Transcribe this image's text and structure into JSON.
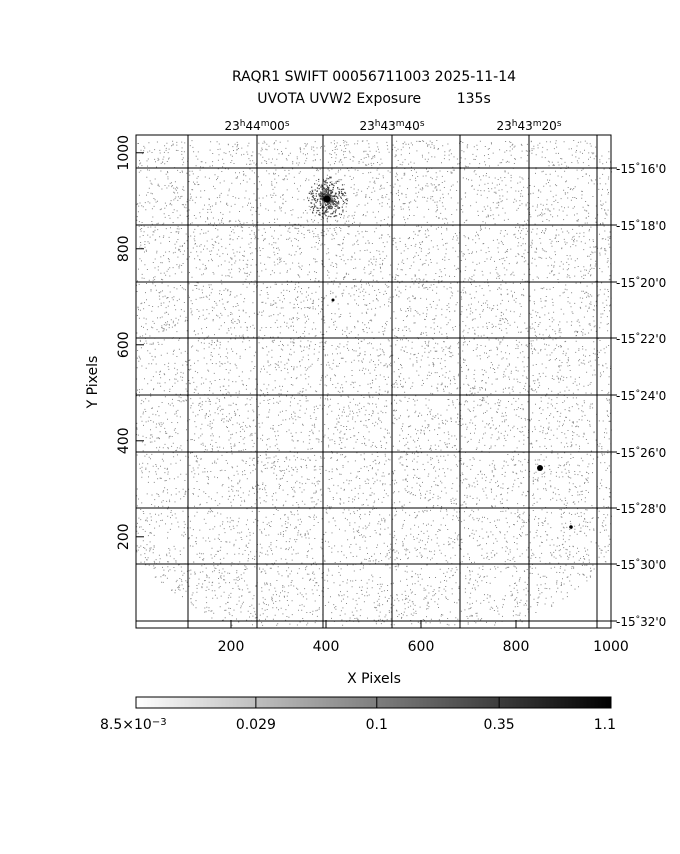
{
  "chart_data": {
    "type": "image",
    "title": "RAQR1 SWIFT 00056711003 2025-11-14",
    "subtitle": "UVOTA UVW2 Exposure        135s",
    "xlabel": "X Pixels",
    "ylabel": "Y Pixels",
    "xlim": [
      0,
      1000
    ],
    "ylim": [
      10,
      1037
    ],
    "xticks": [
      200,
      400,
      600,
      800,
      1000
    ],
    "yticks": [
      200,
      400,
      600,
      800,
      1000
    ],
    "ra_labels": [
      [
        "23",
        "h",
        "44",
        "m",
        "00",
        "s"
      ],
      [
        "23",
        "h",
        "43",
        "m",
        "40",
        "s"
      ],
      [
        "23",
        "h",
        "43",
        "m",
        "20",
        "s"
      ]
    ],
    "dec_labels": [
      [
        "-15",
        "°",
        "16'0"
      ],
      [
        "-15",
        "°",
        "18'0"
      ],
      [
        "-15",
        "°",
        "20'0"
      ],
      [
        "-15",
        "°",
        "22'0"
      ],
      [
        "-15",
        "°",
        "24'0"
      ],
      [
        "-15",
        "°",
        "26'0"
      ],
      [
        "-15",
        "°",
        "28'0"
      ],
      [
        "-15",
        "°",
        "30'0"
      ],
      [
        "-15",
        "°",
        "32'0"
      ]
    ],
    "colorbar": {
      "log": true,
      "clim": [
        0.0085,
        1.1
      ],
      "ticks": [
        {
          "value": 0.0085,
          "label": "8.5×10",
          "exponent": "−3"
        },
        0.029,
        0.1,
        0.35,
        1.1
      ]
    }
  }
}
